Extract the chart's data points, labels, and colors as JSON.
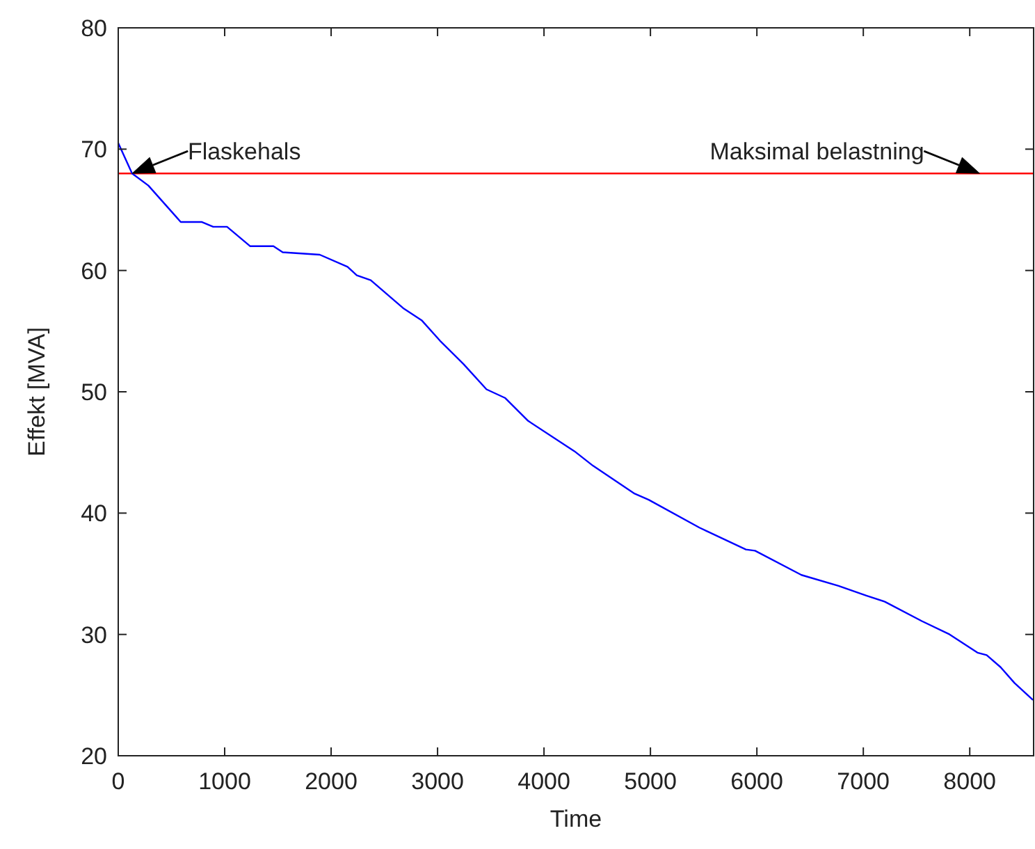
{
  "chart_data": {
    "type": "line",
    "xlabel": "Time",
    "ylabel": "Effekt [MVA]",
    "xlim": [
      0,
      8600
    ],
    "ylim": [
      20,
      80
    ],
    "xticks": [
      0,
      1000,
      2000,
      3000,
      4000,
      5000,
      6000,
      7000,
      8000
    ],
    "yticks": [
      20,
      30,
      40,
      50,
      60,
      70,
      80
    ],
    "grid": false,
    "x": [
      0,
      130,
      283,
      587,
      783,
      892,
      1022,
      1240,
      1458,
      1545,
      1893,
      2154,
      2241,
      2372,
      2676,
      2850,
      3024,
      3242,
      3460,
      3633,
      3851,
      4286,
      4461,
      4852,
      4983,
      5461,
      5897,
      5983,
      6419,
      6767,
      7028,
      7202,
      7550,
      7811,
      8072,
      8159,
      8290,
      8420,
      8594
    ],
    "series": [
      {
        "color": "#0000ff",
        "values": [
          70.5,
          68,
          67,
          64,
          64,
          63.6,
          63.6,
          62,
          62,
          61.5,
          61.3,
          60.3,
          59.6,
          59.2,
          56.9,
          55.9,
          54.2,
          52.3,
          50.2,
          49.5,
          47.6,
          45.1,
          43.9,
          41.6,
          41.1,
          38.8,
          37,
          36.9,
          34.9,
          34,
          33.2,
          32.7,
          31.1,
          30,
          28.5,
          28.3,
          27.3,
          26,
          24.6
        ]
      }
    ],
    "ref_lines": [
      {
        "axis": "y",
        "value": 68,
        "color": "#ff0000"
      }
    ],
    "annotations": [
      {
        "text": "Flaskehals",
        "x": 130,
        "y": 68
      },
      {
        "text": "Maksimal belastning",
        "x": 8094,
        "y": 68
      }
    ]
  }
}
